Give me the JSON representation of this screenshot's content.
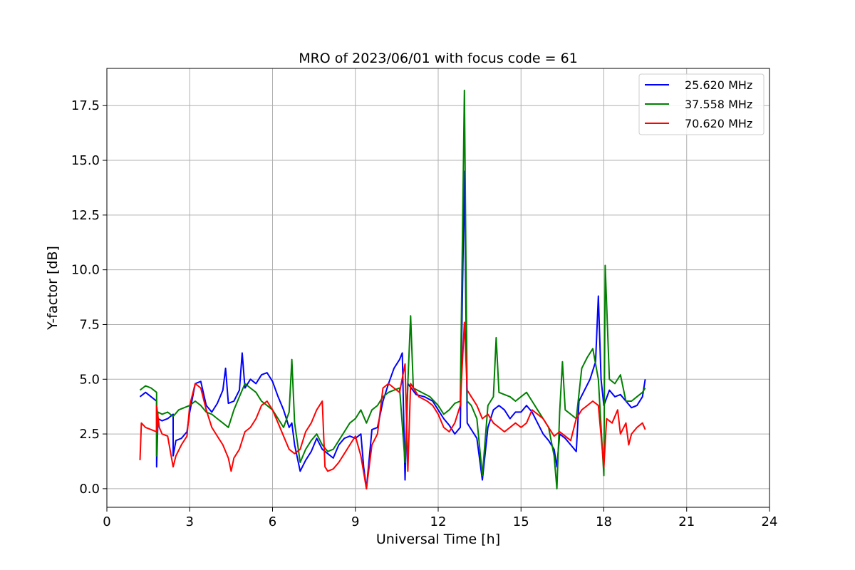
{
  "chart_data": {
    "type": "line",
    "title": "MRO of 2023/06/01 with focus code = 61",
    "xlabel": "Universal Time [h]",
    "ylabel": "Y-factor [dB]",
    "xlim": [
      0,
      24
    ],
    "ylim": [
      -0.85,
      19.2
    ],
    "xticks": [
      0,
      3,
      6,
      9,
      12,
      15,
      18,
      21,
      24
    ],
    "yticks": [
      0.0,
      2.5,
      5.0,
      7.5,
      10.0,
      12.5,
      15.0,
      17.5
    ],
    "xtick_labels": [
      "0",
      "3",
      "6",
      "9",
      "12",
      "15",
      "18",
      "21",
      "24"
    ],
    "ytick_labels": [
      "0.0",
      "2.5",
      "5.0",
      "7.5",
      "10.0",
      "12.5",
      "15.0",
      "17.5"
    ],
    "grid": true,
    "legend_position": "top-right",
    "series": [
      {
        "name": "25.620 MHz",
        "color": "#0000ff",
        "points": [
          [
            1.2,
            4.2
          ],
          [
            1.4,
            4.4
          ],
          [
            1.6,
            4.2
          ],
          [
            1.8,
            4.0
          ],
          [
            1.8,
            1.0
          ],
          [
            1.85,
            3.2
          ],
          [
            2.0,
            3.1
          ],
          [
            2.2,
            3.2
          ],
          [
            2.4,
            3.4
          ],
          [
            2.4,
            1.5
          ],
          [
            2.5,
            2.2
          ],
          [
            2.7,
            2.3
          ],
          [
            2.9,
            2.6
          ],
          [
            3.0,
            3.5
          ],
          [
            3.2,
            4.8
          ],
          [
            3.4,
            4.9
          ],
          [
            3.6,
            3.8
          ],
          [
            3.8,
            3.5
          ],
          [
            4.0,
            3.9
          ],
          [
            4.2,
            4.5
          ],
          [
            4.3,
            5.5
          ],
          [
            4.4,
            3.9
          ],
          [
            4.6,
            4.0
          ],
          [
            4.8,
            4.5
          ],
          [
            4.9,
            6.2
          ],
          [
            5.0,
            4.6
          ],
          [
            5.2,
            5.0
          ],
          [
            5.4,
            4.8
          ],
          [
            5.6,
            5.2
          ],
          [
            5.8,
            5.3
          ],
          [
            6.0,
            4.9
          ],
          [
            6.2,
            4.2
          ],
          [
            6.4,
            3.6
          ],
          [
            6.6,
            2.8
          ],
          [
            6.7,
            3.0
          ],
          [
            6.8,
            2.0
          ],
          [
            7.0,
            0.8
          ],
          [
            7.2,
            1.3
          ],
          [
            7.4,
            1.7
          ],
          [
            7.6,
            2.3
          ],
          [
            7.8,
            1.8
          ],
          [
            8.0,
            1.6
          ],
          [
            8.2,
            1.4
          ],
          [
            8.4,
            2.0
          ],
          [
            8.6,
            2.3
          ],
          [
            8.8,
            2.4
          ],
          [
            9.0,
            2.3
          ],
          [
            9.2,
            2.5
          ],
          [
            9.3,
            1.0
          ],
          [
            9.4,
            0.0
          ],
          [
            9.6,
            2.7
          ],
          [
            9.8,
            2.8
          ],
          [
            10.0,
            4.0
          ],
          [
            10.2,
            4.8
          ],
          [
            10.4,
            5.5
          ],
          [
            10.6,
            5.9
          ],
          [
            10.7,
            6.2
          ],
          [
            10.8,
            0.4
          ],
          [
            10.9,
            4.8
          ],
          [
            11.2,
            4.3
          ],
          [
            11.5,
            4.2
          ],
          [
            11.8,
            4.0
          ],
          [
            12.0,
            3.6
          ],
          [
            12.2,
            3.2
          ],
          [
            12.4,
            2.9
          ],
          [
            12.6,
            2.5
          ],
          [
            12.8,
            2.8
          ],
          [
            12.95,
            14.5
          ],
          [
            13.05,
            3.0
          ],
          [
            13.2,
            2.7
          ],
          [
            13.4,
            2.3
          ],
          [
            13.6,
            0.4
          ],
          [
            13.8,
            2.8
          ],
          [
            14.0,
            3.6
          ],
          [
            14.2,
            3.8
          ],
          [
            14.4,
            3.6
          ],
          [
            14.6,
            3.2
          ],
          [
            14.8,
            3.5
          ],
          [
            15.0,
            3.5
          ],
          [
            15.2,
            3.8
          ],
          [
            15.4,
            3.5
          ],
          [
            15.6,
            3.0
          ],
          [
            15.8,
            2.5
          ],
          [
            16.0,
            2.2
          ],
          [
            16.2,
            1.8
          ],
          [
            16.3,
            1.0
          ],
          [
            16.4,
            2.5
          ],
          [
            16.6,
            2.3
          ],
          [
            16.8,
            2.0
          ],
          [
            17.0,
            1.7
          ],
          [
            17.1,
            4.0
          ],
          [
            17.3,
            4.5
          ],
          [
            17.5,
            5.0
          ],
          [
            17.7,
            5.8
          ],
          [
            17.8,
            8.8
          ],
          [
            17.9,
            5.0
          ],
          [
            18.0,
            3.8
          ],
          [
            18.2,
            4.5
          ],
          [
            18.4,
            4.2
          ],
          [
            18.6,
            4.3
          ],
          [
            18.8,
            4.0
          ],
          [
            19.0,
            3.7
          ],
          [
            19.2,
            3.8
          ],
          [
            19.4,
            4.2
          ],
          [
            19.5,
            5.0
          ]
        ]
      },
      {
        "name": "37.558 MHz",
        "color": "#008000",
        "points": [
          [
            1.2,
            4.5
          ],
          [
            1.4,
            4.7
          ],
          [
            1.6,
            4.6
          ],
          [
            1.8,
            4.4
          ],
          [
            1.8,
            1.5
          ],
          [
            1.85,
            3.5
          ],
          [
            2.0,
            3.4
          ],
          [
            2.2,
            3.5
          ],
          [
            2.4,
            3.3
          ],
          [
            2.6,
            3.6
          ],
          [
            2.8,
            3.7
          ],
          [
            3.0,
            3.8
          ],
          [
            3.2,
            4.0
          ],
          [
            3.4,
            3.8
          ],
          [
            3.6,
            3.5
          ],
          [
            3.8,
            3.4
          ],
          [
            4.0,
            3.2
          ],
          [
            4.2,
            3.0
          ],
          [
            4.4,
            2.8
          ],
          [
            4.6,
            3.6
          ],
          [
            4.8,
            4.2
          ],
          [
            5.0,
            4.8
          ],
          [
            5.2,
            4.6
          ],
          [
            5.4,
            4.4
          ],
          [
            5.6,
            4.0
          ],
          [
            5.8,
            3.8
          ],
          [
            6.0,
            3.6
          ],
          [
            6.2,
            3.2
          ],
          [
            6.4,
            2.8
          ],
          [
            6.6,
            3.5
          ],
          [
            6.7,
            5.9
          ],
          [
            6.8,
            3.0
          ],
          [
            7.0,
            1.2
          ],
          [
            7.2,
            1.8
          ],
          [
            7.4,
            2.2
          ],
          [
            7.6,
            2.5
          ],
          [
            7.8,
            2.0
          ],
          [
            8.0,
            1.7
          ],
          [
            8.2,
            1.8
          ],
          [
            8.4,
            2.2
          ],
          [
            8.6,
            2.6
          ],
          [
            8.8,
            3.0
          ],
          [
            9.0,
            3.2
          ],
          [
            9.2,
            3.6
          ],
          [
            9.4,
            3.0
          ],
          [
            9.6,
            3.6
          ],
          [
            9.8,
            3.8
          ],
          [
            10.0,
            4.2
          ],
          [
            10.2,
            4.4
          ],
          [
            10.4,
            4.5
          ],
          [
            10.6,
            4.6
          ],
          [
            10.8,
            1.2
          ],
          [
            10.9,
            4.8
          ],
          [
            11.0,
            7.9
          ],
          [
            11.1,
            4.6
          ],
          [
            11.4,
            4.4
          ],
          [
            11.7,
            4.2
          ],
          [
            12.0,
            3.8
          ],
          [
            12.2,
            3.4
          ],
          [
            12.4,
            3.6
          ],
          [
            12.6,
            3.9
          ],
          [
            12.8,
            4.0
          ],
          [
            12.95,
            18.2
          ],
          [
            13.05,
            4.0
          ],
          [
            13.2,
            3.8
          ],
          [
            13.4,
            3.2
          ],
          [
            13.6,
            0.6
          ],
          [
            13.8,
            3.8
          ],
          [
            14.0,
            4.2
          ],
          [
            14.1,
            6.9
          ],
          [
            14.2,
            4.4
          ],
          [
            14.4,
            4.3
          ],
          [
            14.6,
            4.2
          ],
          [
            14.8,
            4.0
          ],
          [
            15.0,
            4.2
          ],
          [
            15.2,
            4.4
          ],
          [
            15.4,
            4.0
          ],
          [
            15.6,
            3.6
          ],
          [
            15.8,
            3.2
          ],
          [
            16.0,
            2.8
          ],
          [
            16.2,
            1.5
          ],
          [
            16.3,
            0.0
          ],
          [
            16.4,
            3.5
          ],
          [
            16.5,
            5.8
          ],
          [
            16.6,
            3.6
          ],
          [
            16.8,
            3.4
          ],
          [
            17.0,
            3.2
          ],
          [
            17.2,
            5.5
          ],
          [
            17.4,
            6.0
          ],
          [
            17.6,
            6.4
          ],
          [
            17.8,
            5.0
          ],
          [
            18.0,
            0.6
          ],
          [
            18.05,
            10.2
          ],
          [
            18.2,
            5.0
          ],
          [
            18.4,
            4.8
          ],
          [
            18.6,
            5.2
          ],
          [
            18.8,
            4.0
          ],
          [
            19.0,
            4.0
          ],
          [
            19.2,
            4.2
          ],
          [
            19.4,
            4.4
          ],
          [
            19.5,
            4.6
          ]
        ]
      },
      {
        "name": "70.620 MHz",
        "color": "#ff0000",
        "points": [
          [
            1.2,
            1.3
          ],
          [
            1.25,
            3.0
          ],
          [
            1.4,
            2.8
          ],
          [
            1.6,
            2.7
          ],
          [
            1.8,
            2.6
          ],
          [
            1.8,
            3.8
          ],
          [
            1.9,
            2.8
          ],
          [
            2.0,
            2.5
          ],
          [
            2.2,
            2.4
          ],
          [
            2.4,
            1.0
          ],
          [
            2.5,
            1.5
          ],
          [
            2.7,
            2.0
          ],
          [
            2.9,
            2.4
          ],
          [
            3.0,
            3.8
          ],
          [
            3.2,
            4.8
          ],
          [
            3.4,
            4.6
          ],
          [
            3.6,
            3.6
          ],
          [
            3.8,
            2.8
          ],
          [
            4.0,
            2.4
          ],
          [
            4.2,
            2.0
          ],
          [
            4.4,
            1.4
          ],
          [
            4.5,
            0.8
          ],
          [
            4.6,
            1.4
          ],
          [
            4.8,
            1.8
          ],
          [
            5.0,
            2.6
          ],
          [
            5.2,
            2.8
          ],
          [
            5.4,
            3.2
          ],
          [
            5.6,
            3.8
          ],
          [
            5.8,
            4.0
          ],
          [
            6.0,
            3.6
          ],
          [
            6.2,
            3.0
          ],
          [
            6.4,
            2.4
          ],
          [
            6.6,
            1.8
          ],
          [
            6.8,
            1.6
          ],
          [
            7.0,
            1.8
          ],
          [
            7.2,
            2.6
          ],
          [
            7.4,
            3.0
          ],
          [
            7.6,
            3.6
          ],
          [
            7.8,
            4.0
          ],
          [
            7.9,
            1.0
          ],
          [
            8.0,
            0.8
          ],
          [
            8.2,
            0.9
          ],
          [
            8.4,
            1.2
          ],
          [
            8.6,
            1.6
          ],
          [
            8.8,
            2.0
          ],
          [
            9.0,
            2.4
          ],
          [
            9.2,
            1.5
          ],
          [
            9.4,
            0.0
          ],
          [
            9.6,
            2.0
          ],
          [
            9.8,
            2.5
          ],
          [
            10.0,
            4.6
          ],
          [
            10.2,
            4.8
          ],
          [
            10.4,
            4.6
          ],
          [
            10.6,
            4.4
          ],
          [
            10.8,
            5.7
          ],
          [
            10.9,
            0.8
          ],
          [
            11.0,
            4.8
          ],
          [
            11.3,
            4.2
          ],
          [
            11.6,
            4.0
          ],
          [
            11.8,
            3.8
          ],
          [
            12.0,
            3.4
          ],
          [
            12.2,
            2.8
          ],
          [
            12.4,
            2.6
          ],
          [
            12.6,
            3.0
          ],
          [
            12.8,
            3.8
          ],
          [
            12.95,
            7.6
          ],
          [
            13.05,
            4.5
          ],
          [
            13.2,
            4.2
          ],
          [
            13.4,
            3.8
          ],
          [
            13.6,
            3.2
          ],
          [
            13.8,
            3.4
          ],
          [
            14.0,
            3.0
          ],
          [
            14.2,
            2.8
          ],
          [
            14.4,
            2.6
          ],
          [
            14.6,
            2.8
          ],
          [
            14.8,
            3.0
          ],
          [
            15.0,
            2.8
          ],
          [
            15.2,
            3.0
          ],
          [
            15.4,
            3.6
          ],
          [
            15.6,
            3.4
          ],
          [
            15.8,
            3.2
          ],
          [
            16.0,
            2.8
          ],
          [
            16.2,
            2.4
          ],
          [
            16.4,
            2.6
          ],
          [
            16.6,
            2.4
          ],
          [
            16.8,
            2.2
          ],
          [
            17.0,
            3.2
          ],
          [
            17.2,
            3.6
          ],
          [
            17.4,
            3.8
          ],
          [
            17.6,
            4.0
          ],
          [
            17.8,
            3.8
          ],
          [
            18.0,
            1.0
          ],
          [
            18.1,
            3.2
          ],
          [
            18.3,
            3.0
          ],
          [
            18.5,
            3.6
          ],
          [
            18.6,
            2.5
          ],
          [
            18.8,
            3.0
          ],
          [
            18.9,
            2.0
          ],
          [
            19.0,
            2.5
          ],
          [
            19.2,
            2.8
          ],
          [
            19.4,
            3.0
          ],
          [
            19.5,
            2.7
          ]
        ]
      }
    ]
  }
}
